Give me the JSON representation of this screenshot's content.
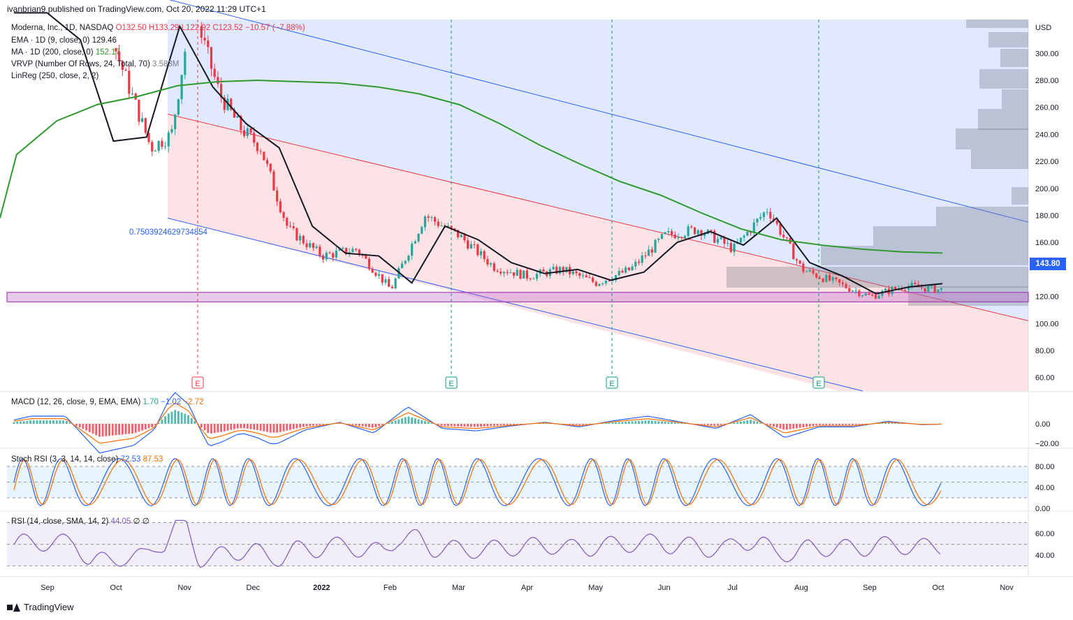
{
  "header": {
    "published": "ivanbrian9 published on TradingView.com, Oct 20, 2022 11:29 UTC+1"
  },
  "legend": {
    "symbol": "Moderna, Inc., 1D, NASDAQ",
    "ohlc": "O132.50  H133.29  L122.92  C123.52  −10.57 (−7.88%)",
    "ema_label": "EMA · 1D (9, close, 0)",
    "ema_value": "129.46",
    "ma_label": "MA · 1D (200, close, 0)",
    "ma_value": "152.17",
    "vrvp_label": "VRVP (Number Of Rows, 24, Total, 70)",
    "vrvp_value": "3.583M",
    "linreg_label": "LinReg (250, close, 2, 2)",
    "linreg_coef": "0.7503924629734854"
  },
  "macd_legend": {
    "label": "MACD (12, 26, close, 9, EMA, EMA)",
    "v1": "1.70",
    "v2": "−1.02",
    "v3": "−2.72"
  },
  "stoch_legend": {
    "label": "Stoch RSI (3, 3, 14, 14, close)",
    "k": "72.53",
    "d": "87.53"
  },
  "rsi_legend": {
    "label": "RSI (14, close, SMA, 14, 2)",
    "v": "44.05",
    "x1": "∅",
    "x2": "∅"
  },
  "last_price": "143.80",
  "currency": "USD",
  "footer": {
    "brand": "TradingView"
  },
  "earnings_marker": "E",
  "colors": {
    "up": "#26a69a",
    "down": "#f23645",
    "ema": "#131722",
    "ma": "#2e9a2e",
    "channel": "#2962ff",
    "macd": "#2962ff",
    "signal": "#ff6d00",
    "rsi": "#7e57c2"
  },
  "chart_data": {
    "type": "line",
    "title": "Moderna, Inc., 1D, NASDAQ",
    "x_axis_labels": [
      "Sep",
      "Oct",
      "Nov",
      "Dec",
      "2022",
      "Feb",
      "Mar",
      "Apr",
      "May",
      "Jun",
      "Jul",
      "Aug",
      "Sep",
      "Oct",
      "Nov"
    ],
    "price_axis": {
      "ticks": [
        60,
        80,
        100,
        120,
        140,
        160,
        180,
        200,
        220,
        240,
        260,
        280,
        300
      ],
      "ylim": [
        50,
        325
      ]
    },
    "macd_axis": {
      "ticks": [
        0,
        -20
      ]
    },
    "stoch_axis": {
      "ticks": [
        80,
        40,
        0
      ]
    },
    "rsi_axis": {
      "ticks": [
        60,
        40
      ]
    },
    "support_zone": [
      116,
      123
    ],
    "price_close_approx": {
      "x_month_index": [
        0,
        1,
        1.5,
        2,
        2.3,
        2.6,
        3,
        3.3,
        3.6,
        4,
        4.5,
        5,
        5.5,
        6,
        6.5,
        7,
        7.5,
        8,
        8.5,
        9,
        9.5,
        10,
        10.5,
        11,
        11.5,
        12,
        12.5,
        13,
        13.5
      ],
      "values": [
        345,
        395,
        300,
        230,
        240,
        335,
        270,
        245,
        230,
        170,
        150,
        155,
        125,
        180,
        165,
        142,
        135,
        140,
        130,
        140,
        165,
        170,
        155,
        185,
        140,
        130,
        120,
        128,
        125
      ]
    },
    "ema9_approx": [
      345,
      390,
      310,
      235,
      238,
      320,
      275,
      248,
      230,
      172,
      152,
      150,
      130,
      172,
      162,
      145,
      137,
      140,
      132,
      138,
      160,
      168,
      158,
      178,
      145,
      135,
      122,
      127,
      129.46
    ],
    "ma200_approx": [
      178,
      225,
      250,
      262,
      268,
      276,
      279,
      280,
      279,
      278,
      275,
      270,
      262,
      248,
      232,
      218,
      205,
      195,
      182,
      170,
      162,
      158,
      155,
      153,
      152.17
    ],
    "earnings_dates": [
      "Nov",
      "Feb",
      "May",
      "Aug"
    ],
    "rsi_last": 44.05,
    "stoch_k_last": 72.53,
    "stoch_d_last": 87.53
  }
}
